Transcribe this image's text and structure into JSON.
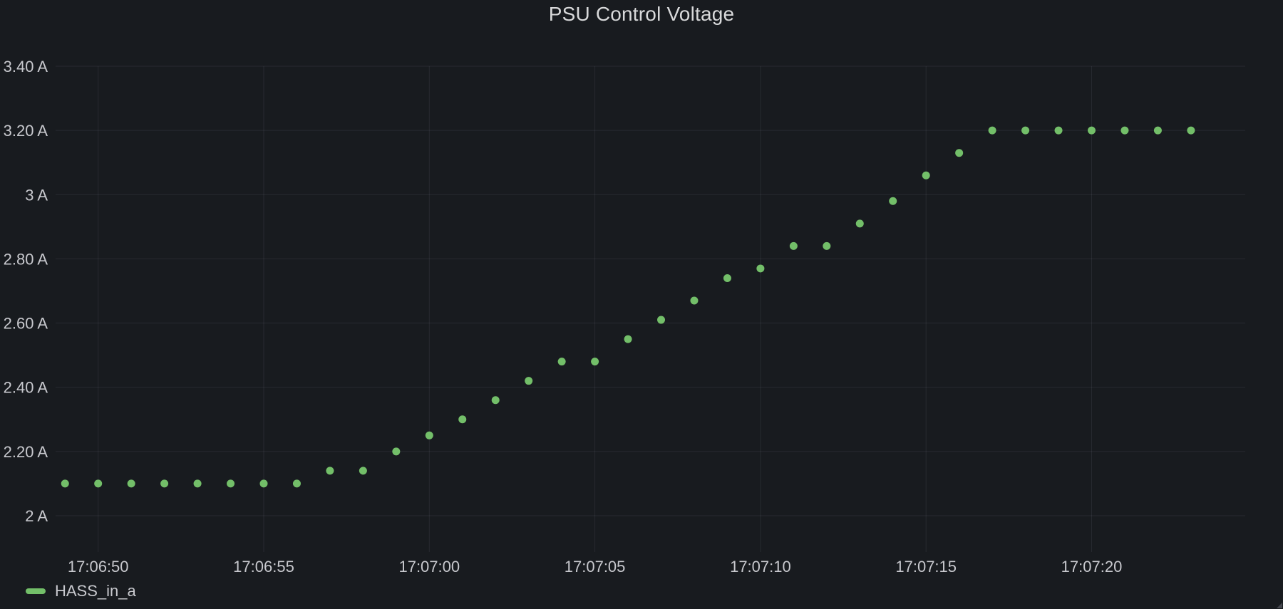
{
  "panel": {
    "title": "PSU Control Voltage"
  },
  "legend": {
    "series_label": "HASS_in_a"
  },
  "colors": {
    "background": "#181b1f",
    "grid": "rgba(204,204,220,0.09)",
    "axis_text": "#c8c9ce",
    "title_text": "#d8d9da",
    "series_green": "#73bf69"
  },
  "chart_data": {
    "type": "scatter",
    "title": "PSU Control Voltage",
    "unit": "A",
    "grid": true,
    "legend_position": "bottom-left",
    "ylim": [
      1.89,
      3.4
    ],
    "xlim": [
      "17:06:48.7",
      "17:07:24.6"
    ],
    "y_ticks": [
      {
        "value": 3.4,
        "label": "3.40 A"
      },
      {
        "value": 3.2,
        "label": "3.20 A"
      },
      {
        "value": 3.0,
        "label": "3 A"
      },
      {
        "value": 2.8,
        "label": "2.80 A"
      },
      {
        "value": 2.6,
        "label": "2.60 A"
      },
      {
        "value": 2.4,
        "label": "2.40 A"
      },
      {
        "value": 2.2,
        "label": "2.20 A"
      },
      {
        "value": 2.0,
        "label": "2 A"
      }
    ],
    "x_ticks": [
      "17:06:50",
      "17:06:55",
      "17:07:00",
      "17:07:05",
      "17:07:10",
      "17:07:15",
      "17:07:20"
    ],
    "series": [
      {
        "name": "HASS_in_a",
        "x": [
          "17:06:49",
          "17:06:50",
          "17:06:51",
          "17:06:52",
          "17:06:53",
          "17:06:54",
          "17:06:55",
          "17:06:56",
          "17:06:57",
          "17:06:58",
          "17:06:59",
          "17:07:00",
          "17:07:01",
          "17:07:02",
          "17:07:03",
          "17:07:04",
          "17:07:05",
          "17:07:06",
          "17:07:07",
          "17:07:08",
          "17:07:09",
          "17:07:10",
          "17:07:11",
          "17:07:12",
          "17:07:13",
          "17:07:14",
          "17:07:15",
          "17:07:16",
          "17:07:17",
          "17:07:18",
          "17:07:19",
          "17:07:20",
          "17:07:21",
          "17:07:22",
          "17:07:23"
        ],
        "values": [
          2.1,
          2.1,
          2.1,
          2.1,
          2.1,
          2.1,
          2.1,
          2.1,
          2.14,
          2.14,
          2.2,
          2.25,
          2.3,
          2.36,
          2.42,
          2.48,
          2.48,
          2.55,
          2.61,
          2.67,
          2.74,
          2.77,
          2.84,
          2.84,
          2.91,
          2.98,
          3.06,
          3.13,
          3.2,
          3.2,
          3.2,
          3.2,
          3.2,
          3.2,
          3.2
        ]
      }
    ]
  }
}
